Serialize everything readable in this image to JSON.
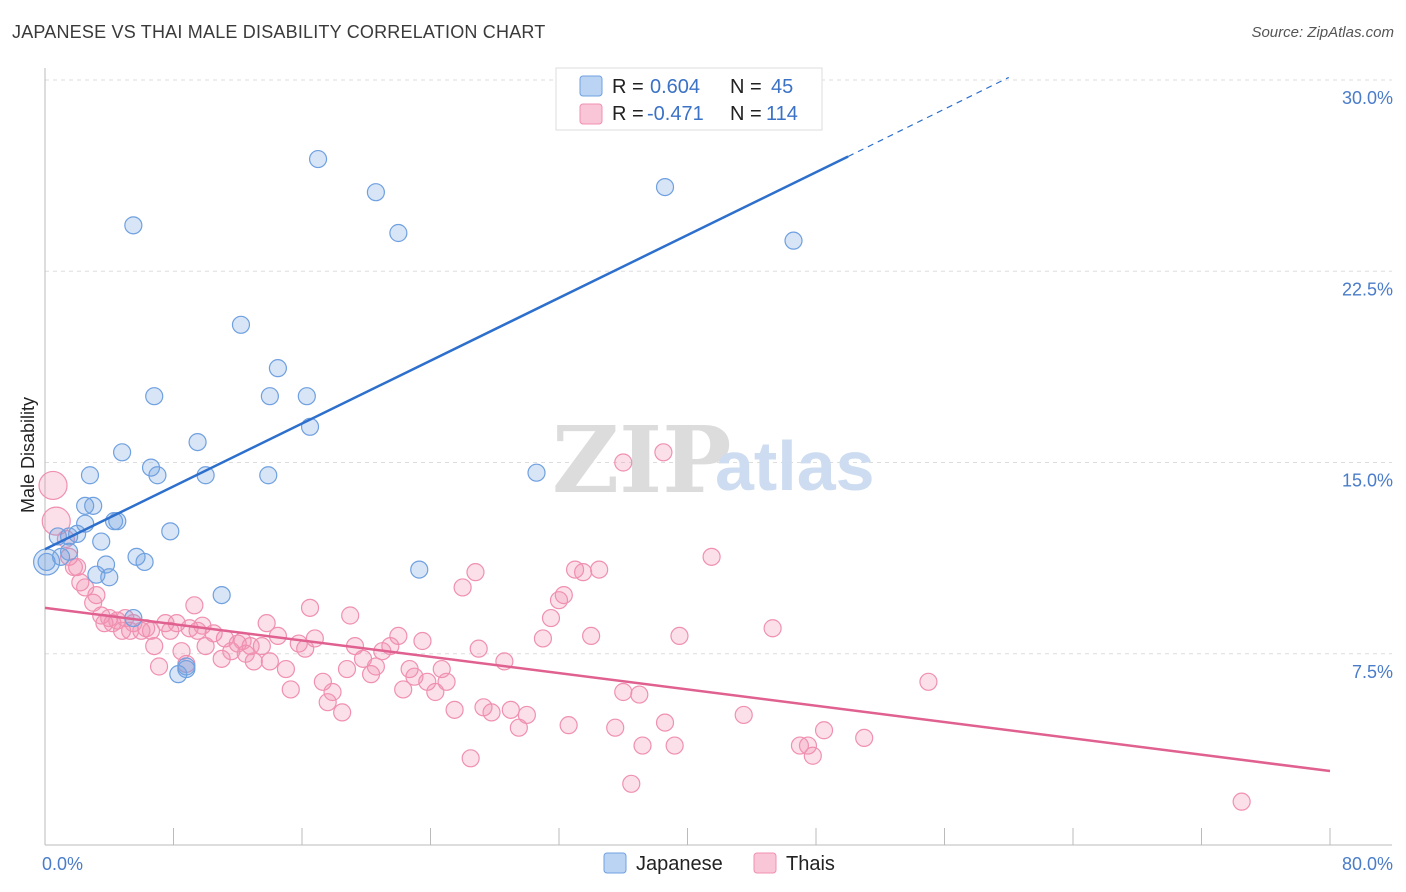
{
  "title": "JAPANESE VS THAI MALE DISABILITY CORRELATION CHART",
  "source": "Source: ZipAtlas.com",
  "watermark": {
    "zip": "ZIP",
    "atlas": "atlas"
  },
  "chart_data": {
    "type": "scatter",
    "ylabel": "Male Disability",
    "xlim": [
      0,
      80
    ],
    "ylim": [
      0,
      30
    ],
    "x_tick_labels": [
      "0.0%",
      "80.0%"
    ],
    "y_ticks": [
      7.5,
      15.0,
      22.5,
      30.0
    ],
    "y_tick_labels": [
      "7.5%",
      "15.0%",
      "22.5%",
      "30.0%"
    ],
    "grid": true,
    "legend_position": "top-center",
    "bottom_legend": [
      "Japanese",
      "Thais"
    ],
    "colors": {
      "japanese": "#6fa0e0",
      "japanese_line": "#2d6fcc",
      "thais": "#f090b0",
      "thais_line": "#e0608f"
    },
    "series": [
      {
        "name": "Japanese",
        "r_label": "R =",
        "r": "0.604",
        "n_label": "N =",
        "n": "45",
        "trend": {
          "x0": 0,
          "y0": 11.6,
          "x1": 50,
          "y1": 27.0,
          "dash_to_x": 60,
          "dash_to_y": 30.1
        },
        "points": [
          [
            0.1,
            11.1
          ],
          [
            0.8,
            12.1
          ],
          [
            1.0,
            11.3
          ],
          [
            1.5,
            12.1
          ],
          [
            1.5,
            11.5
          ],
          [
            2.0,
            12.2
          ],
          [
            2.5,
            13.3
          ],
          [
            2.5,
            12.6
          ],
          [
            2.8,
            14.5
          ],
          [
            3.0,
            13.3
          ],
          [
            3.2,
            10.6
          ],
          [
            3.5,
            11.9
          ],
          [
            3.8,
            11.0
          ],
          [
            4.0,
            10.5
          ],
          [
            4.3,
            12.7
          ],
          [
            4.5,
            12.7
          ],
          [
            4.8,
            15.4
          ],
          [
            5.5,
            8.9
          ],
          [
            5.5,
            24.3
          ],
          [
            5.7,
            11.3
          ],
          [
            6.2,
            11.1
          ],
          [
            6.6,
            14.8
          ],
          [
            6.8,
            17.6
          ],
          [
            7.0,
            14.5
          ],
          [
            7.8,
            12.3
          ],
          [
            8.3,
            6.7
          ],
          [
            8.8,
            7.0
          ],
          [
            8.8,
            6.9
          ],
          [
            9.5,
            15.8
          ],
          [
            10.0,
            14.5
          ],
          [
            11.0,
            9.8
          ],
          [
            12.2,
            20.4
          ],
          [
            13.9,
            14.5
          ],
          [
            14.0,
            17.6
          ],
          [
            14.5,
            18.7
          ],
          [
            16.3,
            17.6
          ],
          [
            16.5,
            16.4
          ],
          [
            17.0,
            26.9
          ],
          [
            20.6,
            25.6
          ],
          [
            22.0,
            24.0
          ],
          [
            23.3,
            10.8
          ],
          [
            30.6,
            14.6
          ],
          [
            38.6,
            25.8
          ],
          [
            46.6,
            23.7
          ],
          [
            0.1,
            11.1
          ]
        ]
      },
      {
        "name": "Thais",
        "r_label": "R =",
        "r": "-0.471",
        "n_label": "N =",
        "n": "114",
        "trend": {
          "x0": 0,
          "y0": 9.3,
          "x1": 80,
          "y1": 2.9
        },
        "points": [
          [
            0.5,
            14.1
          ],
          [
            0.7,
            12.7
          ],
          [
            1.3,
            12.0
          ],
          [
            1.5,
            11.3
          ],
          [
            1.8,
            10.9
          ],
          [
            2.0,
            10.9
          ],
          [
            2.2,
            10.3
          ],
          [
            2.5,
            10.1
          ],
          [
            3.0,
            9.5
          ],
          [
            3.2,
            9.8
          ],
          [
            3.5,
            9.0
          ],
          [
            3.7,
            8.7
          ],
          [
            4.0,
            8.9
          ],
          [
            4.2,
            8.7
          ],
          [
            4.5,
            8.8
          ],
          [
            4.8,
            8.4
          ],
          [
            5.0,
            8.9
          ],
          [
            5.3,
            8.4
          ],
          [
            5.5,
            8.7
          ],
          [
            6.0,
            8.4
          ],
          [
            6.3,
            8.5
          ],
          [
            6.6,
            8.4
          ],
          [
            6.8,
            7.8
          ],
          [
            7.1,
            7.0
          ],
          [
            7.5,
            8.7
          ],
          [
            7.8,
            8.4
          ],
          [
            8.2,
            8.7
          ],
          [
            8.5,
            7.6
          ],
          [
            8.8,
            7.1
          ],
          [
            9.0,
            8.5
          ],
          [
            9.3,
            9.4
          ],
          [
            9.5,
            8.4
          ],
          [
            9.8,
            8.6
          ],
          [
            10.0,
            7.8
          ],
          [
            10.5,
            8.3
          ],
          [
            11.0,
            7.3
          ],
          [
            11.2,
            8.1
          ],
          [
            11.6,
            7.6
          ],
          [
            12.0,
            7.9
          ],
          [
            12.3,
            8.0
          ],
          [
            12.5,
            7.5
          ],
          [
            12.8,
            7.8
          ],
          [
            13.0,
            7.2
          ],
          [
            13.5,
            7.8
          ],
          [
            13.8,
            8.7
          ],
          [
            14.0,
            7.2
          ],
          [
            14.5,
            8.2
          ],
          [
            15.0,
            6.9
          ],
          [
            15.3,
            6.1
          ],
          [
            15.8,
            7.9
          ],
          [
            16.2,
            7.7
          ],
          [
            16.5,
            9.3
          ],
          [
            16.8,
            8.1
          ],
          [
            17.3,
            6.4
          ],
          [
            17.6,
            5.6
          ],
          [
            17.9,
            6.0
          ],
          [
            18.5,
            5.2
          ],
          [
            18.8,
            6.9
          ],
          [
            19.0,
            9.0
          ],
          [
            19.3,
            7.8
          ],
          [
            19.8,
            7.3
          ],
          [
            20.3,
            6.7
          ],
          [
            20.6,
            7.0
          ],
          [
            21.0,
            7.6
          ],
          [
            21.5,
            7.8
          ],
          [
            22.0,
            8.2
          ],
          [
            22.3,
            6.1
          ],
          [
            22.7,
            6.9
          ],
          [
            23.0,
            6.6
          ],
          [
            23.5,
            8.0
          ],
          [
            23.8,
            6.4
          ],
          [
            24.3,
            6.0
          ],
          [
            24.7,
            6.9
          ],
          [
            25.0,
            6.4
          ],
          [
            25.5,
            5.3
          ],
          [
            26.0,
            10.1
          ],
          [
            26.5,
            3.4
          ],
          [
            26.8,
            10.7
          ],
          [
            27.0,
            7.7
          ],
          [
            27.3,
            5.4
          ],
          [
            27.8,
            5.2
          ],
          [
            28.6,
            7.2
          ],
          [
            29.0,
            5.3
          ],
          [
            29.5,
            4.6
          ],
          [
            30.0,
            5.1
          ],
          [
            31.0,
            8.1
          ],
          [
            31.5,
            8.9
          ],
          [
            32.0,
            9.6
          ],
          [
            32.3,
            9.8
          ],
          [
            32.6,
            4.7
          ],
          [
            33.0,
            10.8
          ],
          [
            33.5,
            10.7
          ],
          [
            34.0,
            8.2
          ],
          [
            34.5,
            10.8
          ],
          [
            35.5,
            4.6
          ],
          [
            36.0,
            6.0
          ],
          [
            36.5,
            2.4
          ],
          [
            37.0,
            5.9
          ],
          [
            37.2,
            3.9
          ],
          [
            38.5,
            15.4
          ],
          [
            38.6,
            4.8
          ],
          [
            39.2,
            3.9
          ],
          [
            39.5,
            8.2
          ],
          [
            41.5,
            11.3
          ],
          [
            43.5,
            5.1
          ],
          [
            45.3,
            8.5
          ],
          [
            47.0,
            3.9
          ],
          [
            47.5,
            3.9
          ],
          [
            47.8,
            3.5
          ],
          [
            48.5,
            4.5
          ],
          [
            51.0,
            4.2
          ],
          [
            55.0,
            6.4
          ],
          [
            74.5,
            1.7
          ],
          [
            36.0,
            15.0
          ]
        ]
      }
    ]
  }
}
